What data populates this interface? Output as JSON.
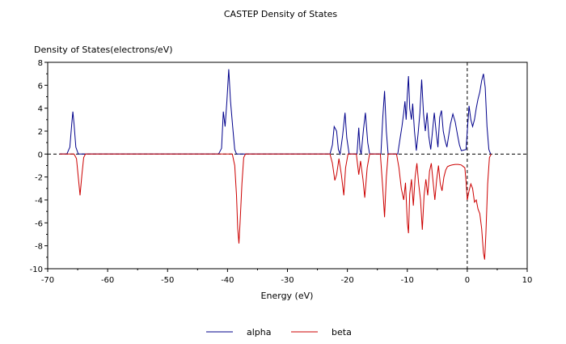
{
  "chart_data": {
    "type": "line",
    "title": "CASTEP Density of States",
    "xlabel": "Energy (eV)",
    "ylabel": "Density of States(electrons/eV)",
    "xlim": [
      -70,
      10
    ],
    "ylim": [
      -10,
      8
    ],
    "xticks": [
      -70,
      -60,
      -50,
      -40,
      -30,
      -20,
      -10,
      0,
      10
    ],
    "yticks": [
      -10,
      -8,
      -6,
      -4,
      -2,
      0,
      2,
      4,
      6,
      8
    ],
    "fermi_level": 0,
    "legend_position": "bottom-center",
    "series": [
      {
        "name": "alpha",
        "color": "#00008b",
        "points": [
          [
            -68,
            0
          ],
          [
            -66.8,
            0
          ],
          [
            -66.3,
            0.6
          ],
          [
            -66.0,
            2.6
          ],
          [
            -65.8,
            3.7
          ],
          [
            -65.6,
            2.6
          ],
          [
            -65.3,
            0.6
          ],
          [
            -64.9,
            0
          ],
          [
            -41.5,
            0
          ],
          [
            -41.0,
            0.5
          ],
          [
            -40.7,
            3.7
          ],
          [
            -40.4,
            2.4
          ],
          [
            -40.1,
            4.6
          ],
          [
            -39.8,
            7.4
          ],
          [
            -39.5,
            4.6
          ],
          [
            -39.1,
            2.2
          ],
          [
            -38.8,
            0.4
          ],
          [
            -38.5,
            0
          ],
          [
            -22.9,
            0
          ],
          [
            -22.5,
            0.8
          ],
          [
            -22.2,
            2.4
          ],
          [
            -21.8,
            2.0
          ],
          [
            -21.5,
            0.4
          ],
          [
            -21.2,
            0
          ],
          [
            -20.8,
            1.6
          ],
          [
            -20.4,
            3.6
          ],
          [
            -20.1,
            1.4
          ],
          [
            -19.7,
            0
          ],
          [
            -18.4,
            0
          ],
          [
            -18.1,
            2.3
          ],
          [
            -17.9,
            0.4
          ],
          [
            -17.7,
            0
          ],
          [
            -17.3,
            2.2
          ],
          [
            -17.0,
            3.6
          ],
          [
            -16.6,
            1.0
          ],
          [
            -16.3,
            0
          ],
          [
            -14.4,
            0
          ],
          [
            -14.1,
            3.2
          ],
          [
            -13.8,
            5.5
          ],
          [
            -13.5,
            2.0
          ],
          [
            -13.2,
            0
          ],
          [
            -11.6,
            0
          ],
          [
            -11.2,
            1.4
          ],
          [
            -10.9,
            2.4
          ],
          [
            -10.6,
            3.6
          ],
          [
            -10.4,
            4.6
          ],
          [
            -10.2,
            3.0
          ],
          [
            -10.0,
            5.2
          ],
          [
            -9.8,
            6.8
          ],
          [
            -9.6,
            4.0
          ],
          [
            -9.3,
            3.0
          ],
          [
            -9.1,
            4.4
          ],
          [
            -8.8,
            2.0
          ],
          [
            -8.5,
            0.3
          ],
          [
            -8.2,
            1.8
          ],
          [
            -7.9,
            3.6
          ],
          [
            -7.6,
            6.5
          ],
          [
            -7.3,
            3.5
          ],
          [
            -7.0,
            2.0
          ],
          [
            -6.7,
            3.6
          ],
          [
            -6.4,
            1.5
          ],
          [
            -6.1,
            0.4
          ],
          [
            -5.8,
            2.0
          ],
          [
            -5.5,
            3.6
          ],
          [
            -5.2,
            2.0
          ],
          [
            -4.9,
            0.6
          ],
          [
            -4.6,
            3.2
          ],
          [
            -4.3,
            3.8
          ],
          [
            -4.0,
            2.0
          ],
          [
            -3.7,
            1.2
          ],
          [
            -3.4,
            0.6
          ],
          [
            -3.1,
            1.6
          ],
          [
            -2.8,
            2.6
          ],
          [
            -2.4,
            3.5
          ],
          [
            -2.0,
            2.8
          ],
          [
            -1.6,
            1.6
          ],
          [
            -1.3,
            0.8
          ],
          [
            -1.0,
            0.3
          ],
          [
            -0.2,
            0.4
          ],
          [
            0.0,
            2.0
          ],
          [
            0.3,
            4.2
          ],
          [
            0.6,
            3.0
          ],
          [
            0.9,
            2.4
          ],
          [
            1.2,
            3.0
          ],
          [
            1.5,
            4.0
          ],
          [
            1.8,
            4.8
          ],
          [
            2.1,
            5.4
          ],
          [
            2.4,
            6.4
          ],
          [
            2.7,
            7.0
          ],
          [
            3.0,
            5.8
          ],
          [
            3.3,
            2.4
          ],
          [
            3.6,
            0.4
          ],
          [
            3.9,
            0
          ]
        ]
      },
      {
        "name": "beta",
        "color": "#cc0000",
        "points": [
          [
            -68,
            0
          ],
          [
            -65.6,
            0
          ],
          [
            -65.2,
            -0.4
          ],
          [
            -64.9,
            -2.0
          ],
          [
            -64.6,
            -3.6
          ],
          [
            -64.3,
            -1.8
          ],
          [
            -64.0,
            -0.3
          ],
          [
            -63.7,
            0
          ],
          [
            -39.2,
            0
          ],
          [
            -38.8,
            -1.0
          ],
          [
            -38.5,
            -3.6
          ],
          [
            -38.3,
            -6.5
          ],
          [
            -38.1,
            -7.8
          ],
          [
            -37.9,
            -6.0
          ],
          [
            -37.6,
            -2.6
          ],
          [
            -37.3,
            -0.3
          ],
          [
            -37.0,
            0
          ],
          [
            -22.9,
            0
          ],
          [
            -22.5,
            -0.8
          ],
          [
            -22.1,
            -2.3
          ],
          [
            -21.8,
            -1.8
          ],
          [
            -21.4,
            -0.4
          ],
          [
            -21.0,
            -1.8
          ],
          [
            -20.6,
            -3.6
          ],
          [
            -20.3,
            -1.2
          ],
          [
            -19.9,
            0
          ],
          [
            -18.5,
            0
          ],
          [
            -18.1,
            -1.8
          ],
          [
            -17.8,
            -0.6
          ],
          [
            -17.4,
            -2.2
          ],
          [
            -17.1,
            -3.8
          ],
          [
            -16.7,
            -1.2
          ],
          [
            -16.3,
            0
          ],
          [
            -14.5,
            0
          ],
          [
            -14.1,
            -3.0
          ],
          [
            -13.8,
            -5.5
          ],
          [
            -13.5,
            -2.0
          ],
          [
            -13.2,
            0
          ],
          [
            -11.8,
            0
          ],
          [
            -11.4,
            -1.2
          ],
          [
            -11.0,
            -3.0
          ],
          [
            -10.6,
            -4.0
          ],
          [
            -10.3,
            -2.5
          ],
          [
            -10.0,
            -6.0
          ],
          [
            -9.8,
            -6.9
          ],
          [
            -9.6,
            -3.5
          ],
          [
            -9.3,
            -2.2
          ],
          [
            -9.0,
            -4.5
          ],
          [
            -8.7,
            -2.0
          ],
          [
            -8.4,
            -0.8
          ],
          [
            -8.1,
            -2.6
          ],
          [
            -7.8,
            -4.0
          ],
          [
            -7.5,
            -6.6
          ],
          [
            -7.2,
            -3.6
          ],
          [
            -6.9,
            -2.2
          ],
          [
            -6.6,
            -3.6
          ],
          [
            -6.3,
            -1.5
          ],
          [
            -6.0,
            -0.8
          ],
          [
            -5.7,
            -2.4
          ],
          [
            -5.4,
            -4.0
          ],
          [
            -5.1,
            -2.2
          ],
          [
            -4.8,
            -1.0
          ],
          [
            -4.5,
            -2.6
          ],
          [
            -4.2,
            -3.2
          ],
          [
            -3.9,
            -2.0
          ],
          [
            -3.6,
            -1.4
          ],
          [
            -3.3,
            -1.1
          ],
          [
            -2.9,
            -1.0
          ],
          [
            -2.5,
            -0.95
          ],
          [
            -2.0,
            -0.9
          ],
          [
            -1.5,
            -0.9
          ],
          [
            -1.0,
            -0.95
          ],
          [
            -0.4,
            -1.2
          ],
          [
            -0.2,
            -2.4
          ],
          [
            0.0,
            -4.0
          ],
          [
            0.3,
            -3.2
          ],
          [
            0.6,
            -2.6
          ],
          [
            0.9,
            -3.0
          ],
          [
            1.2,
            -4.2
          ],
          [
            1.5,
            -4.0
          ],
          [
            1.8,
            -4.8
          ],
          [
            2.1,
            -5.2
          ],
          [
            2.4,
            -6.5
          ],
          [
            2.7,
            -8.6
          ],
          [
            2.9,
            -9.2
          ],
          [
            3.1,
            -7.0
          ],
          [
            3.4,
            -2.6
          ],
          [
            3.7,
            -0.3
          ],
          [
            4.0,
            0
          ]
        ]
      }
    ]
  }
}
